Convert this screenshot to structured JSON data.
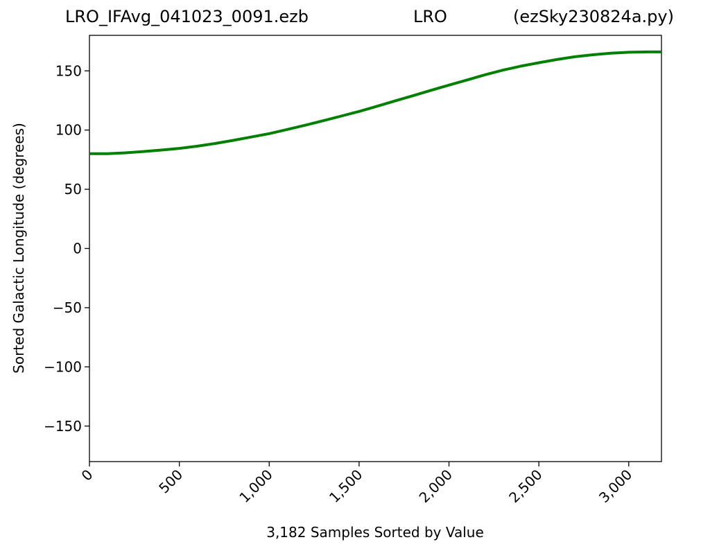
{
  "header": {
    "title_left": "LRO_IFAvg_041023_0091.ezb",
    "title_center": "LRO",
    "title_right": "(ezSky230824a.py)"
  },
  "chart_data": {
    "type": "line",
    "title": "LRO_IFAvg_041023_0091.ezb            LRO            (ezSky230824a.py)",
    "xlabel": "3,182 Samples Sorted by Value",
    "ylabel": "Sorted Galactic Longitude (degrees)",
    "xlim": [
      0,
      3182
    ],
    "ylim": [
      -180,
      180
    ],
    "xticks": [
      0,
      500,
      1000,
      1500,
      2000,
      2500,
      3000
    ],
    "xtick_labels": [
      "0",
      "500",
      "1,000",
      "1,500",
      "2,000",
      "2,500",
      "3,000"
    ],
    "yticks": [
      150,
      100,
      50,
      0,
      -50,
      -100,
      -150
    ],
    "ytick_labels": [
      "150",
      "100",
      "50",
      "0",
      "−50",
      "−100",
      "−150"
    ],
    "grid": false,
    "series": [
      {
        "color": "#008000",
        "x": [
          0,
          100,
          200,
          300,
          400,
          500,
          600,
          700,
          800,
          900,
          1000,
          1100,
          1200,
          1300,
          1400,
          1500,
          1600,
          1700,
          1800,
          1900,
          2000,
          2100,
          2200,
          2300,
          2400,
          2500,
          2600,
          2700,
          2800,
          2900,
          3000,
          3100,
          3182
        ],
        "y": [
          80.0,
          80.1,
          80.8,
          81.9,
          83.1,
          84.5,
          86.4,
          88.7,
          91.3,
          94.1,
          97.0,
          100.5,
          104.1,
          107.9,
          111.8,
          115.7,
          120.1,
          124.6,
          129.0,
          133.6,
          138.0,
          142.3,
          146.7,
          150.6,
          154.0,
          156.9,
          159.6,
          161.9,
          163.6,
          164.9,
          165.7,
          166.0,
          166.0
        ]
      }
    ]
  }
}
